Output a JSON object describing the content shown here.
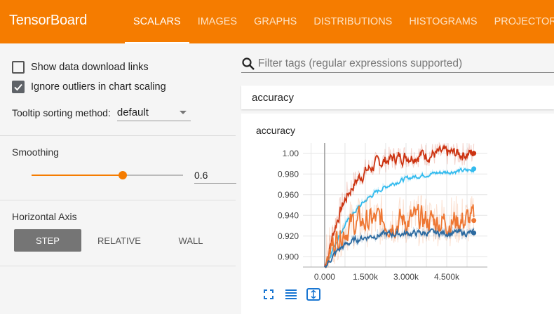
{
  "app": {
    "title": "TensorBoard"
  },
  "tabs": [
    {
      "label": "SCALARS",
      "active": true
    },
    {
      "label": "IMAGES"
    },
    {
      "label": "GRAPHS"
    },
    {
      "label": "DISTRIBUTIONS"
    },
    {
      "label": "HISTOGRAMS"
    },
    {
      "label": "PROJECTOR"
    }
  ],
  "sidebar": {
    "show_download": {
      "label": "Show data download links",
      "checked": false
    },
    "ignore_outliers": {
      "label": "Ignore outliers in chart scaling",
      "checked": true
    },
    "tooltip": {
      "label": "Tooltip sorting method:",
      "value": "default"
    },
    "smoothing": {
      "label": "Smoothing",
      "value": "0.6",
      "fraction": 0.6
    },
    "horizontal_axis": {
      "label": "Horizontal Axis",
      "options": [
        "STEP",
        "RELATIVE",
        "WALL"
      ],
      "selected": "STEP"
    }
  },
  "main": {
    "filter_placeholder": "Filter tags (regular expressions supported)",
    "group_title": "accuracy",
    "card_title": "accuracy"
  },
  "colors": {
    "accent": "#f57c00",
    "series_dark_red": "#cc3311",
    "series_light_blue": "#33bbee",
    "series_orange": "#ee7733",
    "series_blue": "#2c6aa0",
    "icon_blue": "#1976d2"
  },
  "icons": [
    "search-icon",
    "check-icon",
    "fullscreen-icon",
    "toggle-log-icon",
    "fit-domain-icon"
  ],
  "chart_data": {
    "type": "line",
    "title": "accuracy",
    "y_ticks": [
      "0.900",
      "0.920",
      "0.940",
      "0.960",
      "0.980",
      "1.00"
    ],
    "x_ticks": [
      "0.000",
      "1.500k",
      "3.000k",
      "4.500k"
    ],
    "xlim": [
      -800,
      6000
    ],
    "ylim": [
      0.89,
      1.01
    ],
    "grid": true,
    "series": [
      {
        "color": "#cc3311",
        "start": 0.89,
        "end": 1.0,
        "rise": 800,
        "noise": 0.006
      },
      {
        "color": "#33bbee",
        "start": 0.89,
        "end": 0.985,
        "rise": 1300,
        "noise": 0.002
      },
      {
        "color": "#ee7733",
        "start": 0.89,
        "end": 0.935,
        "rise": 400,
        "noise": 0.01
      },
      {
        "color": "#2c6aa0",
        "start": 0.89,
        "end": 0.923,
        "rise": 700,
        "noise": 0.003
      }
    ]
  }
}
